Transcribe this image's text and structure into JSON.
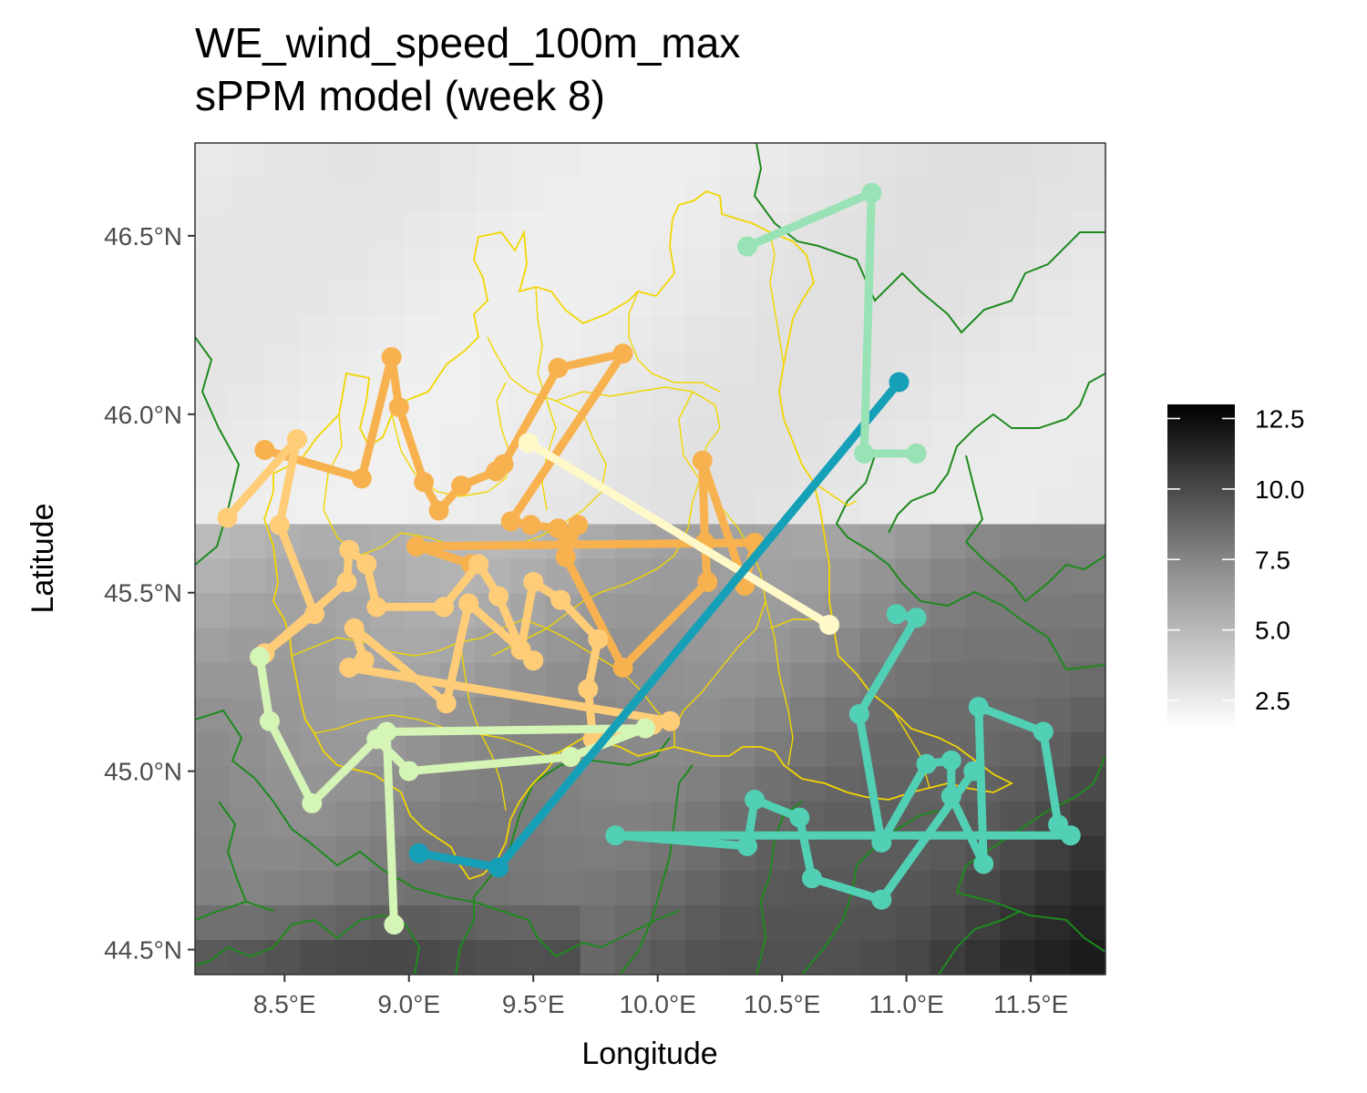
{
  "chart_data": {
    "type": "map",
    "title": "WE_wind_speed_100m_max",
    "subtitle": "sPPM model (week 8)",
    "xlabel": "Longitude",
    "ylabel": "Latitude",
    "xlim": [
      8.14,
      11.8
    ],
    "ylim": [
      44.43,
      46.76
    ],
    "x_ticks": [
      {
        "value": 8.5,
        "label": "8.5°E"
      },
      {
        "value": 9.0,
        "label": "9.0°E"
      },
      {
        "value": 9.5,
        "label": "9.5°E"
      },
      {
        "value": 10.0,
        "label": "10.0°E"
      },
      {
        "value": 10.5,
        "label": "10.5°E"
      },
      {
        "value": 11.0,
        "label": "11.0°E"
      },
      {
        "value": 11.5,
        "label": "11.5°E"
      }
    ],
    "y_ticks": [
      {
        "value": 44.5,
        "label": "44.5°N"
      },
      {
        "value": 45.0,
        "label": "45.0°N"
      },
      {
        "value": 45.5,
        "label": "45.5°N"
      },
      {
        "value": 46.0,
        "label": "46.0°N"
      },
      {
        "value": 46.5,
        "label": "46.5°N"
      }
    ],
    "raster": {
      "variable": "wind speed",
      "colorscale": "white-to-black",
      "min": 1.5,
      "max": 13.0,
      "legend_ticks": [
        {
          "value": 12.5,
          "label": "12.5"
        },
        {
          "value": 10.0,
          "label": "10.0"
        },
        {
          "value": 7.5,
          "label": "7.5"
        },
        {
          "value": 5.0,
          "label": "5.0"
        },
        {
          "value": 2.5,
          "label": "2.5"
        }
      ]
    },
    "grid": false,
    "legend_position": "right",
    "colors": {
      "panel_border": "#333333",
      "province_border": "#1e8a1e",
      "region_border": "#f2d600"
    },
    "series": [
      {
        "color": "#f7b24f",
        "points": [
          [
            8.42,
            45.9
          ],
          [
            8.81,
            45.82
          ],
          [
            8.93,
            46.16
          ],
          [
            8.96,
            46.02
          ],
          [
            9.06,
            45.81
          ],
          [
            9.12,
            45.73
          ],
          [
            9.21,
            45.8
          ],
          [
            9.35,
            45.84
          ],
          [
            9.38,
            45.86
          ],
          [
            9.6,
            46.13
          ],
          [
            9.86,
            46.17
          ],
          [
            9.41,
            45.7
          ],
          [
            9.49,
            45.69
          ],
          [
            9.6,
            45.68
          ],
          [
            9.64,
            45.65
          ],
          [
            9.68,
            45.69
          ],
          [
            9.63,
            45.6
          ],
          [
            9.86,
            45.29
          ],
          [
            10.2,
            45.53
          ],
          [
            10.19,
            45.64
          ],
          [
            10.18,
            45.87
          ],
          [
            10.35,
            45.52
          ],
          [
            10.39,
            45.64
          ],
          [
            9.03,
            45.63
          ],
          [
            9.25,
            45.58
          ]
        ]
      },
      {
        "color": "#ffcd78",
        "points": [
          [
            8.27,
            45.71
          ],
          [
            8.55,
            45.93
          ],
          [
            8.48,
            45.69
          ],
          [
            8.62,
            45.44
          ],
          [
            8.42,
            45.33
          ],
          [
            8.75,
            45.53
          ],
          [
            8.76,
            45.62
          ],
          [
            8.83,
            45.58
          ],
          [
            8.87,
            45.46
          ],
          [
            9.14,
            45.46
          ],
          [
            9.28,
            45.58
          ],
          [
            9.36,
            45.49
          ],
          [
            9.45,
            45.34
          ],
          [
            9.5,
            45.53
          ],
          [
            9.61,
            45.48
          ],
          [
            9.76,
            45.37
          ],
          [
            9.72,
            45.23
          ],
          [
            9.74,
            45.09
          ],
          [
            9.98,
            45.13
          ],
          [
            10.05,
            45.14
          ],
          [
            8.76,
            45.29
          ],
          [
            8.82,
            45.31
          ],
          [
            8.78,
            45.4
          ],
          [
            9.15,
            45.19
          ],
          [
            9.24,
            45.47
          ],
          [
            9.5,
            45.31
          ]
        ]
      },
      {
        "color": "#d4f5b5",
        "points": [
          [
            8.4,
            45.32
          ],
          [
            8.44,
            45.14
          ],
          [
            8.61,
            44.91
          ],
          [
            8.87,
            45.09
          ],
          [
            9.0,
            45.0
          ],
          [
            9.65,
            45.04
          ],
          [
            9.95,
            45.12
          ],
          [
            8.91,
            45.11
          ],
          [
            8.94,
            44.57
          ]
        ]
      },
      {
        "color": "#fff9c9",
        "points": [
          [
            9.48,
            45.92
          ],
          [
            10.69,
            45.41
          ]
        ]
      },
      {
        "color": "#16a0b8",
        "points": [
          [
            9.04,
            44.77
          ],
          [
            9.36,
            44.73
          ],
          [
            10.97,
            46.09
          ]
        ]
      },
      {
        "color": "#98e2b5",
        "points": [
          [
            10.36,
            46.47
          ],
          [
            10.86,
            46.62
          ],
          [
            10.83,
            45.89
          ],
          [
            11.04,
            45.89
          ]
        ]
      },
      {
        "color": "#52d0b5",
        "points": [
          [
            10.96,
            45.44
          ],
          [
            11.04,
            45.43
          ],
          [
            10.81,
            45.16
          ],
          [
            10.9,
            44.8
          ],
          [
            11.08,
            45.02
          ],
          [
            11.18,
            45.03
          ],
          [
            11.18,
            44.93
          ],
          [
            11.31,
            44.74
          ],
          [
            11.29,
            45.18
          ],
          [
            11.55,
            45.11
          ],
          [
            11.61,
            44.85
          ],
          [
            11.66,
            44.82
          ],
          [
            9.83,
            44.82
          ],
          [
            10.36,
            44.79
          ],
          [
            10.39,
            44.92
          ],
          [
            10.57,
            44.87
          ],
          [
            10.62,
            44.7
          ],
          [
            10.9,
            44.64
          ],
          [
            11.27,
            45.0
          ]
        ]
      }
    ]
  }
}
